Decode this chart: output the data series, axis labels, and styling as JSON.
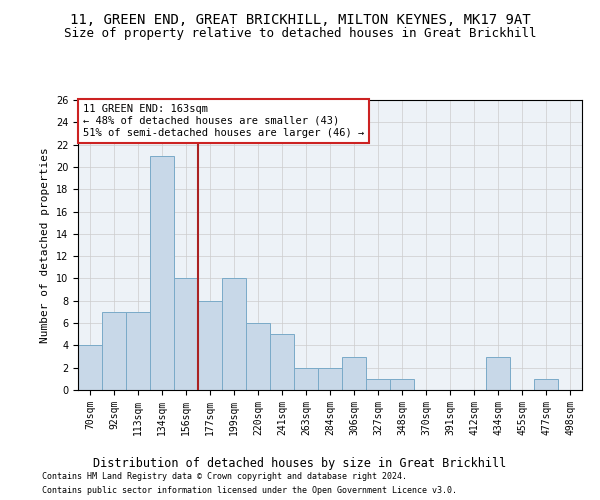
{
  "title1": "11, GREEN END, GREAT BRICKHILL, MILTON KEYNES, MK17 9AT",
  "title2": "Size of property relative to detached houses in Great Brickhill",
  "xlabel": "Distribution of detached houses by size in Great Brickhill",
  "ylabel": "Number of detached properties",
  "footer1": "Contains HM Land Registry data © Crown copyright and database right 2024.",
  "footer2": "Contains public sector information licensed under the Open Government Licence v3.0.",
  "categories": [
    "70sqm",
    "92sqm",
    "113sqm",
    "134sqm",
    "156sqm",
    "177sqm",
    "199sqm",
    "220sqm",
    "241sqm",
    "263sqm",
    "284sqm",
    "306sqm",
    "327sqm",
    "348sqm",
    "370sqm",
    "391sqm",
    "412sqm",
    "434sqm",
    "455sqm",
    "477sqm",
    "498sqm"
  ],
  "values": [
    4,
    7,
    7,
    21,
    10,
    8,
    10,
    6,
    5,
    2,
    2,
    3,
    1,
    1,
    0,
    0,
    0,
    3,
    0,
    1,
    0
  ],
  "bar_color": "#c8d8e8",
  "bar_edge_color": "#7aaac8",
  "vline_x": 4.5,
  "vline_color": "#aa2222",
  "annotation_line1": "11 GREEN END: 163sqm",
  "annotation_line2": "← 48% of detached houses are smaller (43)",
  "annotation_line3": "51% of semi-detached houses are larger (46) →",
  "annotation_box_color": "#ffffff",
  "annotation_box_edge": "#cc2222",
  "ylim": [
    0,
    26
  ],
  "yticks": [
    0,
    2,
    4,
    6,
    8,
    10,
    12,
    14,
    16,
    18,
    20,
    22,
    24,
    26
  ],
  "grid_color": "#cccccc",
  "bg_color": "#edf2f7",
  "title1_fontsize": 10,
  "title2_fontsize": 9,
  "xlabel_fontsize": 8.5,
  "ylabel_fontsize": 8,
  "tick_fontsize": 7,
  "annotation_fontsize": 7.5,
  "footer_fontsize": 6
}
